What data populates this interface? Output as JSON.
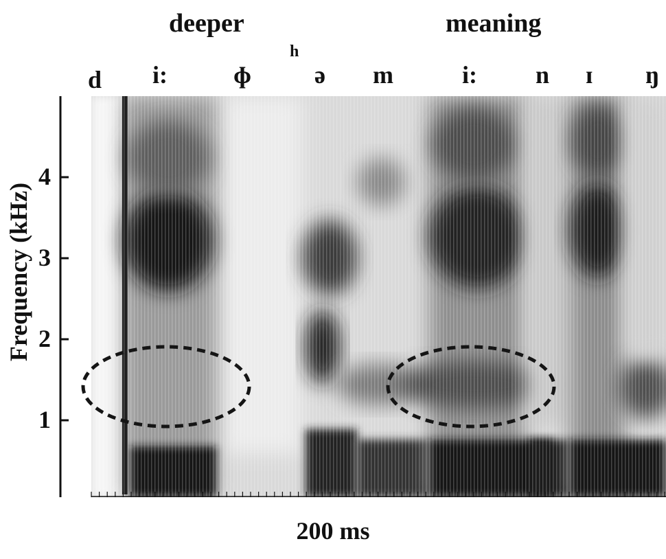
{
  "words": [
    {
      "text": "deeper"
    },
    {
      "text": "meaning"
    }
  ],
  "phones": [
    {
      "text": "d"
    },
    {
      "text": "i:"
    },
    {
      "text": "ɸ"
    },
    {
      "text": "h",
      "superscript": true
    },
    {
      "text": "ə"
    },
    {
      "text": "m"
    },
    {
      "text": "i:"
    },
    {
      "text": "n"
    },
    {
      "text": "ɪ"
    },
    {
      "text": "ŋ"
    }
  ],
  "chart_data": {
    "type": "spectrogram",
    "ylabel": "Frequency (kHz)",
    "yticks": [
      "1",
      "2",
      "3",
      "4"
    ],
    "ylim": [
      0,
      5
    ],
    "time_scale_label": "200 ms",
    "colormap": "grayscale",
    "annotations": [
      {
        "shape": "dashed-ellipse",
        "segment": "i:",
        "word": "deeper",
        "frequency_center_khz": 1.4
      },
      {
        "shape": "dashed-ellipse",
        "segment": "i:",
        "word": "meaning",
        "frequency_center_khz": 1.4
      }
    ]
  }
}
